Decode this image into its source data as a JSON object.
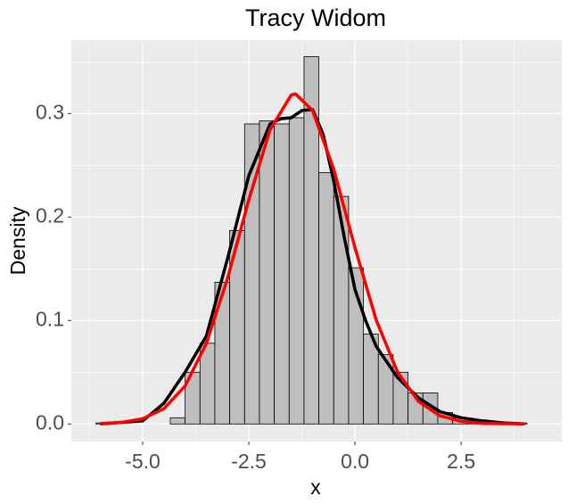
{
  "chart_data": {
    "type": "histogram",
    "title": "Tracy Widom",
    "x_label": "x",
    "y_label": "Density",
    "bins": [
      -6.1,
      -5.75,
      -5.4,
      -5.05,
      -4.7,
      -4.35,
      -4,
      -3.65,
      -3.3,
      -2.95,
      -2.6,
      -2.25,
      -1.9,
      -1.55,
      -1.2,
      -0.85,
      -0.5,
      -0.15,
      0.2,
      0.55,
      0.9,
      1.25,
      1.6,
      1.95,
      2.3,
      2.65,
      3,
      3.35,
      3.7,
      4.05
    ],
    "values": [
      0.001,
      0,
      0,
      0,
      0,
      0.006,
      0.05,
      0.078,
      0.137,
      0.187,
      0.29,
      0.293,
      0.29,
      0.296,
      0.355,
      0.243,
      0.22,
      0.151,
      0.087,
      0.067,
      0.05,
      0.03,
      0.03,
      0.011,
      0.006,
      0.003,
      0.002,
      0.001,
      0.001
    ],
    "color": "#bebebe",
    "curves": [
      {
        "color": "#000000",
        "x": [
          -6,
          -5,
          -4.5,
          -4,
          -3.5,
          -3,
          -2.5,
          -2,
          -1.75,
          -1.5,
          -1.25,
          -1,
          -0.75,
          -0.5,
          -0.25,
          0,
          0.25,
          0.5,
          0.75,
          1,
          1.5,
          2,
          2.5,
          3,
          3.5,
          4
        ],
        "values": [
          0,
          0.003,
          0.02,
          0.05,
          0.085,
          0.16,
          0.24,
          0.29,
          0.295,
          0.296,
          0.303,
          0.304,
          0.28,
          0.235,
          0.18,
          0.13,
          0.1,
          0.075,
          0.06,
          0.045,
          0.025,
          0.012,
          0.006,
          0.003,
          0.001,
          0
        ]
      },
      {
        "color": "#ff0000",
        "x": [
          -6,
          -5.5,
          -5,
          -4.5,
          -4,
          -3.5,
          -3,
          -2.5,
          -2,
          -1.5,
          -1.4,
          -1,
          -0.5,
          0,
          0.5,
          1,
          1.5,
          2,
          2.5,
          3,
          3.5,
          4
        ],
        "values": [
          0.0004,
          0.0015,
          0.005,
          0.0147,
          0.0367,
          0.0778,
          0.1408,
          0.2166,
          0.2843,
          0.318,
          0.319,
          0.3031,
          0.2462,
          0.1705,
          0.1005,
          0.0505,
          0.0216,
          0.0079,
          0.0025,
          0.0006,
          0.0002,
          0
        ]
      }
    ],
    "xlim": [
      -6.68,
      4.87
    ],
    "ylim": [
      -0.017,
      0.371
    ],
    "xticks": [
      {
        "value": -5,
        "label": "-5.0"
      },
      -2.5,
      {
        "value": 0,
        "label": "0.0"
      },
      2.5
    ],
    "yticks": [
      {
        "value": 0,
        "label": "0.0"
      },
      0.1,
      0.2,
      0.3
    ],
    "grid": true
  }
}
